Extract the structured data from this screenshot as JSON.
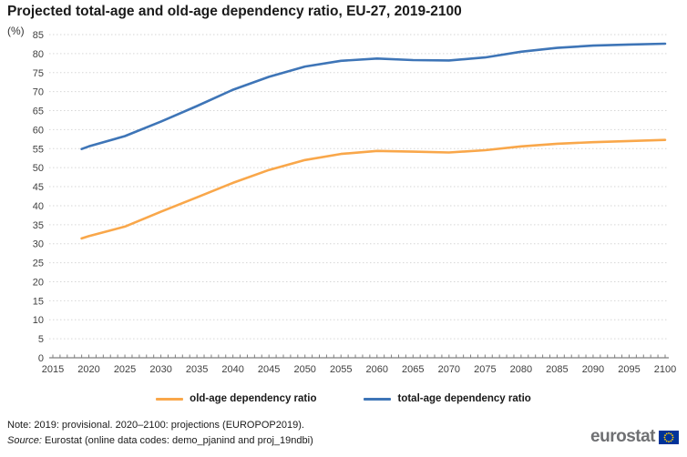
{
  "chart_data": {
    "type": "line",
    "title": "Projected total-age and old-age dependency ratio, EU-27, 2019-2100",
    "ylabel": "(%)",
    "xlabel": "",
    "xlim": [
      2015,
      2100
    ],
    "ylim": [
      0,
      85
    ],
    "xticks": [
      2015,
      2020,
      2025,
      2030,
      2035,
      2040,
      2045,
      2050,
      2055,
      2060,
      2065,
      2070,
      2075,
      2080,
      2085,
      2090,
      2095,
      2100
    ],
    "yticks": [
      0,
      5,
      10,
      15,
      20,
      25,
      30,
      35,
      40,
      45,
      50,
      55,
      60,
      65,
      70,
      75,
      80,
      85
    ],
    "grid": "horizontal-dotted",
    "legend_position": "bottom-center",
    "x": [
      2019,
      2020,
      2025,
      2030,
      2035,
      2040,
      2045,
      2050,
      2055,
      2060,
      2065,
      2070,
      2075,
      2080,
      2085,
      2090,
      2095,
      2100
    ],
    "series": [
      {
        "name": "old-age dependency ratio",
        "color": "#f9a74a",
        "values": [
          31.4,
          32.0,
          34.5,
          38.4,
          42.2,
          46.0,
          49.4,
          52.0,
          53.6,
          54.4,
          54.2,
          54.0,
          54.6,
          55.6,
          56.3,
          56.7,
          57.0,
          57.3
        ]
      },
      {
        "name": "total-age dependency ratio",
        "color": "#3e75b7",
        "values": [
          54.9,
          55.6,
          58.3,
          62.1,
          66.2,
          70.5,
          73.9,
          76.6,
          78.1,
          78.7,
          78.3,
          78.2,
          79.0,
          80.5,
          81.5,
          82.1,
          82.4,
          82.6
        ]
      }
    ]
  },
  "footer": {
    "note": "Note: 2019: provisional. 2020–2100: projections (EUROPOP2019).",
    "source_prefix": "Source:",
    "source_rest": " Eurostat (online data codes: demo_pjanind and proj_19ndbi)",
    "logo_text": "eurostat"
  },
  "colors": {
    "axis": "#7f7f7f",
    "gridline": "#d6d6d6",
    "tick_label": "#404040",
    "eu_flag_blue": "#003399",
    "eu_flag_stars": "#ffcc00"
  }
}
